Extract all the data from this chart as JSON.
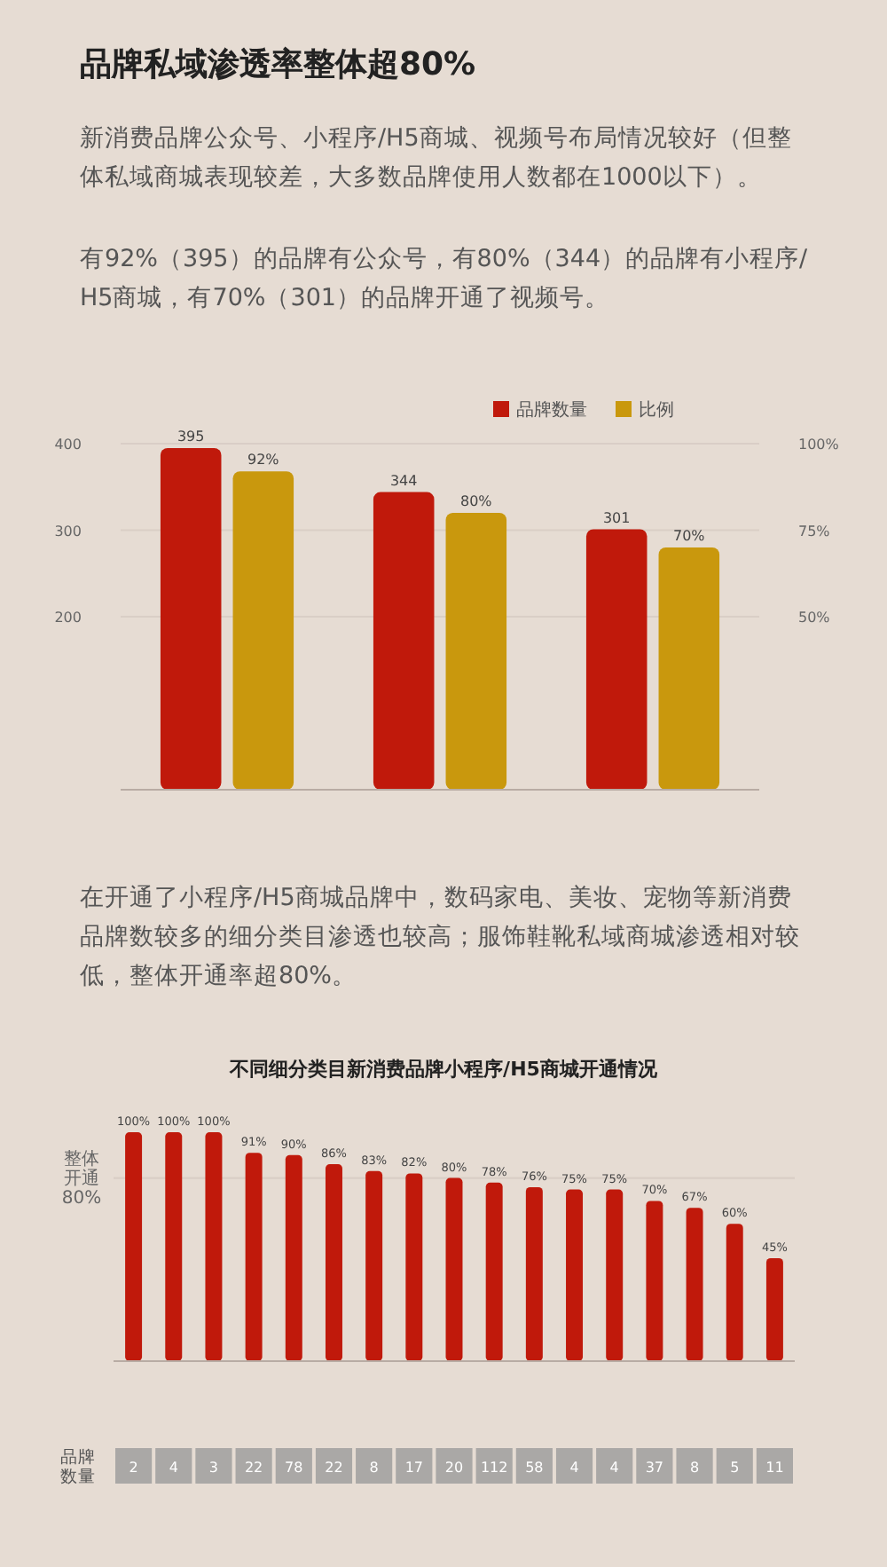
{
  "chart_data": [
    {
      "type": "bar",
      "title": "品牌私域渗透率整体超80%",
      "subtitle": "新消费品牌公众号、小程序/H5商城、视频号布局情况较好（但整体私域商城表现较差，大多数品牌使用人数都在1000以下）。",
      "annotations": [
        "有92%（395）的品牌有公众号，有80%（344）的品牌有小程序/H5商城，有70%（301）的品牌开通了视频号。"
      ],
      "categories": [
        null,
        null,
        null
      ],
      "series": [
        {
          "name": "品牌数量",
          "color": "#c0190b",
          "values": [
            395,
            344,
            301
          ],
          "value_labels": [
            "395",
            "344",
            "301"
          ]
        },
        {
          "name": "比例",
          "color": "#c9980d",
          "values": [
            92,
            80,
            70
          ],
          "value_labels": [
            "92%",
            "80%",
            "70%"
          ],
          "axis": "y2"
        }
      ],
      "ylim": [
        0,
        400
      ],
      "yticks": [
        200,
        300,
        400
      ],
      "y2lim": [
        0,
        100
      ],
      "y2ticks": [
        {
          "value": 50,
          "label": "50%"
        },
        {
          "value": 75,
          "label": "75%"
        },
        {
          "value": 100,
          "label": "100%"
        }
      ],
      "grid": "y",
      "legend": "top right"
    },
    {
      "type": "bar",
      "title": "不同细分类目新消费品牌小程序/H5商城开通情况",
      "subtitle": "在开通了小程序/H5商城品牌中，数码家电、美妆、宠物等新消费品牌数较多的细分类目渗透也较高；服饰鞋靴私域商城渗透相对较低，整体开通率超80%。",
      "categories": [
        null,
        null,
        null,
        null,
        null,
        null,
        null,
        null,
        null,
        null,
        null,
        null,
        null,
        null,
        null,
        null,
        null
      ],
      "series": [
        {
          "color": "#c0190b",
          "values": [
            100,
            100,
            100,
            91,
            90,
            86,
            83,
            82,
            80,
            78,
            76,
            75,
            75,
            70,
            67,
            60,
            45
          ],
          "value_labels": [
            "100%",
            "100%",
            "100%",
            "91%",
            "90%",
            "86%",
            "83%",
            "82%",
            "80%",
            "78%",
            "76%",
            "75%",
            "75%",
            "70%",
            "67%",
            "60%",
            "45%"
          ]
        }
      ],
      "ref_lines": [
        {
          "axis": "y",
          "value": 80,
          "label": "整体开通80%",
          "color": "#d9cec6"
        }
      ],
      "annotations": [
        "品牌数量",
        "2",
        "4",
        "3",
        "22",
        "78",
        "22",
        "8",
        "17",
        "20",
        "112",
        "58",
        "4",
        "4",
        "37",
        "8",
        "5",
        "11"
      ]
    }
  ]
}
